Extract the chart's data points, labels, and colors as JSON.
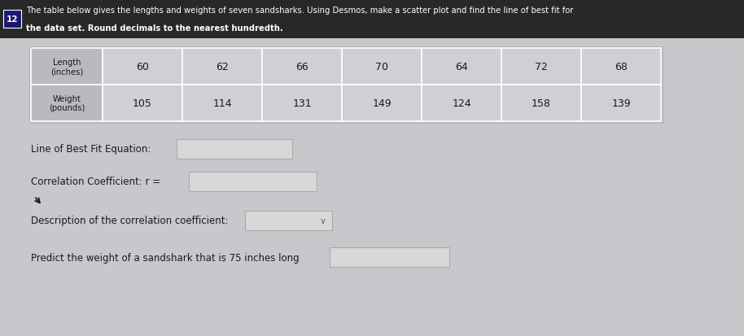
{
  "title_number": "12",
  "lengths": [
    60,
    62,
    66,
    70,
    64,
    72,
    68
  ],
  "weights": [
    105,
    114,
    131,
    149,
    124,
    158,
    139
  ],
  "label1": "Line of Best Fit Equation:",
  "label2": "Correlation Coefficient: r =",
  "label3": "Description of the correlation coefficient:",
  "label4": "Predict the weight of a sandshark that is 75 inches long",
  "title_line1": "The table below gives the lengths and weights of seven sandsharks. Using Desmos, make a scatter plot and find the line of best fit for",
  "title_line2": "the data set. Round decimals to the nearest hundredth.",
  "bg_color": "#c8c8cc",
  "title_bg": "#282828",
  "badge_bg": "#1a1a6e",
  "table_outer_bg": "#c0c0c4",
  "header_cell_bg": "#b8babe",
  "data_cell_bg": "#d0d0d4",
  "input_box_bg": "#d8d8d8",
  "input_box_edge": "#aaaaaa",
  "text_color": "#1a1a1a",
  "white": "#ffffff"
}
